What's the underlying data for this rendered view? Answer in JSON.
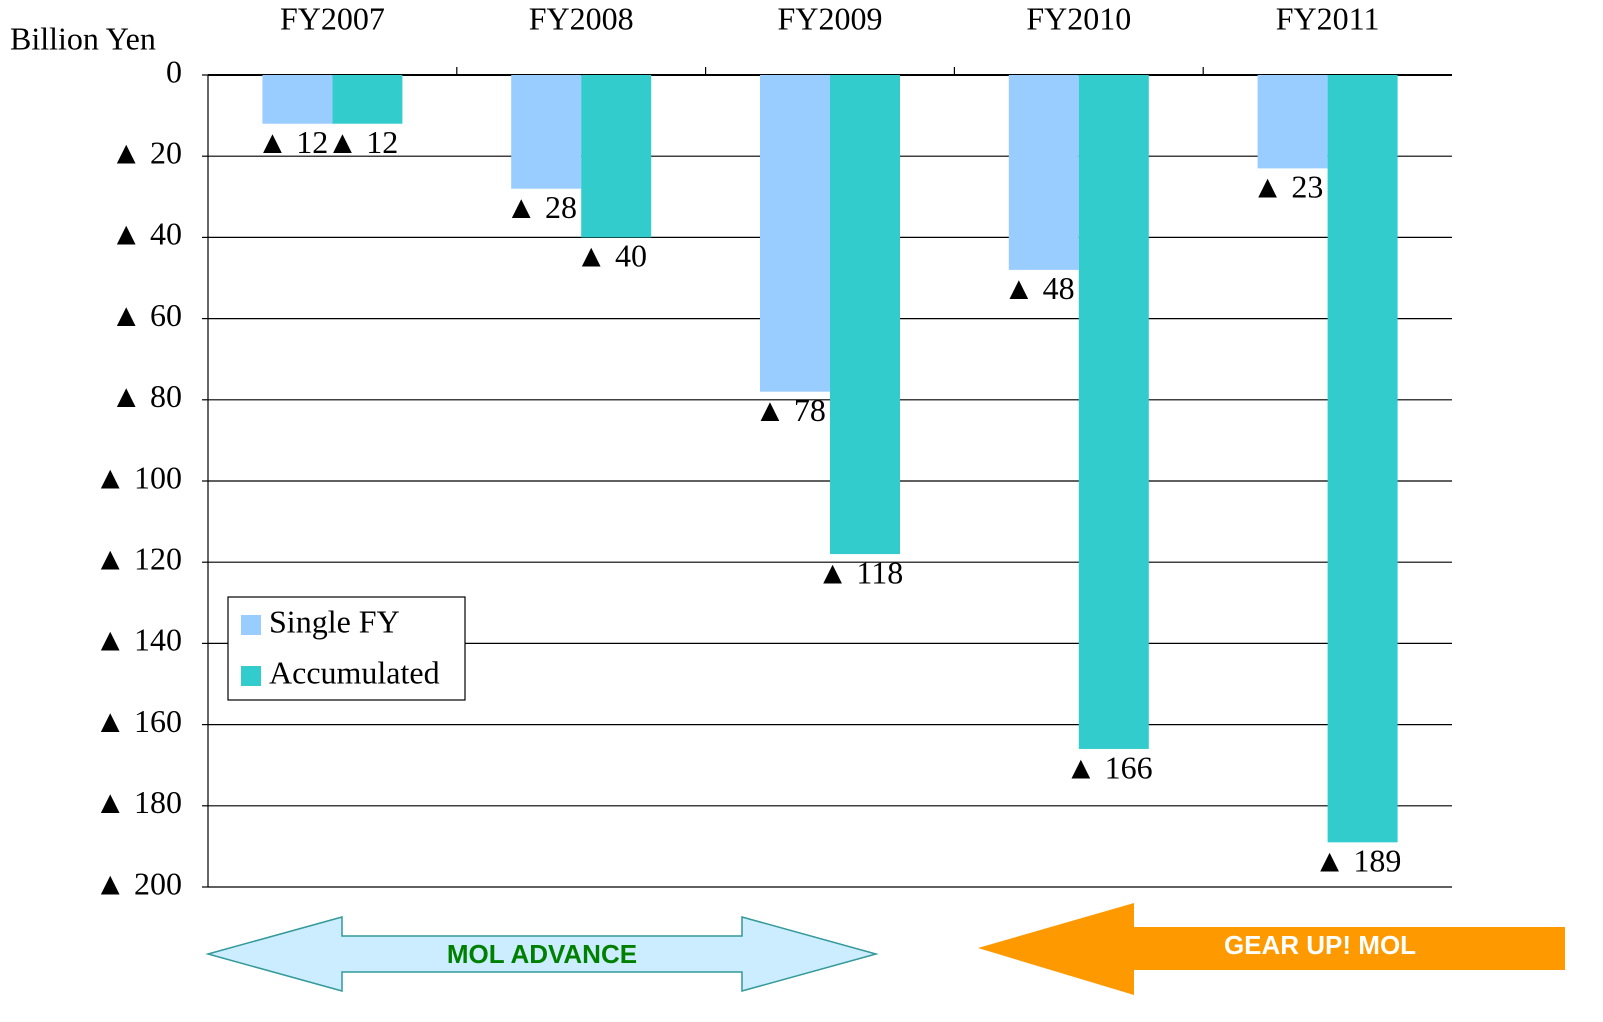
{
  "chart_data": {
    "type": "bar",
    "y_label": "Billion Yen",
    "categories": [
      "FY2007",
      "FY2008",
      "FY2009",
      "FY2010",
      "FY2011"
    ],
    "series": [
      {
        "name": "Single FY",
        "color": "#99ccff",
        "values": [
          -12,
          -28,
          -78,
          -48,
          -23
        ],
        "value_labels": [
          "▲ 12",
          "▲ 28",
          "▲ 78",
          "▲ 48",
          "▲ 23"
        ]
      },
      {
        "name": "Accumulated",
        "color": "#33cccc",
        "values": [
          -12,
          -40,
          -118,
          -166,
          -189
        ],
        "value_labels": [
          "▲ 12",
          "▲ 40",
          "▲ 118",
          "▲ 166",
          "▲ 189"
        ]
      }
    ],
    "ylim": [
      -200,
      0
    ],
    "yticks": [
      0,
      {
        "value": -20,
        "label": "▲ 20"
      },
      {
        "value": -40,
        "label": "▲ 40"
      },
      {
        "value": -60,
        "label": "▲ 60"
      },
      {
        "value": -80,
        "label": "▲ 80"
      },
      {
        "value": -100,
        "label": "▲ 100"
      },
      {
        "value": -120,
        "label": "▲ 120"
      },
      {
        "value": -140,
        "label": "▲ 140"
      },
      {
        "value": -160,
        "label": "▲ 160"
      },
      {
        "value": -180,
        "label": "▲ 180"
      },
      {
        "value": -200,
        "label": "▲ 200"
      }
    ],
    "grid": true,
    "annotations": [
      "MOL ADVANCE",
      "GEAR UP! MOL"
    ]
  }
}
